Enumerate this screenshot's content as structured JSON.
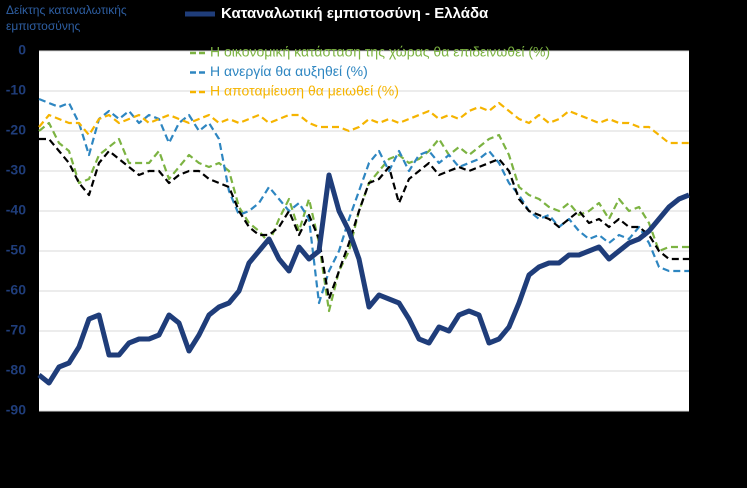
{
  "chart_data": {
    "type": "line",
    "y_label": "Δείκτης καταναλωτικής εμπιστοσύνης",
    "ylim": [
      -90,
      0
    ],
    "yticks": [
      0,
      -10,
      -20,
      -30,
      -40,
      -50,
      -60,
      -70,
      -80,
      -90
    ],
    "grid": true,
    "series": [
      {
        "name": "Η οικονομική κατάσταση της χώρας θα επιδεινωθεί (%)",
        "color": "#7cb342",
        "dashed": true,
        "values": [
          -20,
          -18,
          -23,
          -25,
          -33,
          -32,
          -26,
          -24,
          -22,
          -28,
          -28,
          -28,
          -25,
          -32,
          -29,
          -26,
          -28,
          -29,
          -28,
          -30,
          -39,
          -43,
          -45,
          -48,
          -42,
          -37,
          -45,
          -37,
          -48,
          -65,
          -55,
          -50,
          -40,
          -33,
          -30,
          -27,
          -26,
          -28,
          -27,
          -25,
          -22,
          -26,
          -24,
          -26,
          -24,
          -22,
          -21,
          -26,
          -34,
          -36,
          -37,
          -39,
          -40,
          -38,
          -41,
          -40,
          -38,
          -42,
          -37,
          -40,
          -39,
          -43,
          -50,
          -49,
          -49,
          -49
        ]
      },
      {
        "name": "Η ανεργία θα αυξηθεί (%)",
        "color": "#2e86c1",
        "dashed": true,
        "values": [
          -12,
          -13,
          -14,
          -13,
          -18,
          -26,
          -17,
          -15,
          -17,
          -15,
          -18,
          -16,
          -17,
          -23,
          -18,
          -16,
          -20,
          -18,
          -22,
          -35,
          -41,
          -40,
          -38,
          -34,
          -37,
          -40,
          -38,
          -42,
          -63,
          -55,
          -50,
          -42,
          -35,
          -28,
          -25,
          -30,
          -25,
          -30,
          -26,
          -25,
          -28,
          -26,
          -29,
          -28,
          -27,
          -25,
          -28,
          -33,
          -36,
          -40,
          -42,
          -41,
          -44,
          -42,
          -45,
          -47,
          -46,
          -48,
          -46,
          -47,
          -44,
          -48,
          -54,
          -55,
          -55,
          -55
        ]
      },
      {
        "name": "Η αποταμίευση θα μειωθεί (%)",
        "color": "#f5b400",
        "dashed": true,
        "values": [
          -19,
          -16,
          -17,
          -18,
          -18,
          -21,
          -17,
          -16,
          -18,
          -17,
          -16,
          -18,
          -17,
          -16,
          -17,
          -18,
          -17,
          -16,
          -18,
          -17,
          -18,
          -17,
          -16,
          -18,
          -17,
          -16,
          -16,
          -18,
          -19,
          -19,
          -19,
          -20,
          -19,
          -17,
          -18,
          -17,
          -18,
          -17,
          -16,
          -15,
          -17,
          -16,
          -17,
          -15,
          -14,
          -15,
          -13,
          -15,
          -17,
          -18,
          -16,
          -18,
          -17,
          -15,
          -16,
          -17,
          -18,
          -17,
          -18,
          -18,
          -19,
          -19,
          -21,
          -23,
          -23,
          -23
        ]
      },
      {
        "color": "#000000",
        "dashed": true,
        "values": [
          -22,
          -22,
          -25,
          -28,
          -33,
          -36,
          -28,
          -25,
          -27,
          -29,
          -31,
          -30,
          -30,
          -33,
          -31,
          -30,
          -30,
          -32,
          -33,
          -34,
          -40,
          -44,
          -46,
          -46,
          -44,
          -40,
          -46,
          -41,
          -47,
          -62,
          -55,
          -48,
          -40,
          -33,
          -32,
          -29,
          -38,
          -32,
          -30,
          -28,
          -31,
          -30,
          -29,
          -30,
          -29,
          -28,
          -27,
          -30,
          -37,
          -40,
          -41,
          -42,
          -44,
          -42,
          -40,
          -43,
          -42,
          -44,
          -42,
          -44,
          -44,
          -46,
          -50,
          -52,
          -52,
          -52
        ]
      },
      {
        "name": "Καταναλωτική εμπιστοσύνη - Ελλάδα",
        "color": "#1f3d7a",
        "label_color": "#ffffff",
        "dashed": false,
        "width": 5,
        "values": [
          -81,
          -83,
          -79,
          -78,
          -74,
          -67,
          -66,
          -76,
          -76,
          -73,
          -72,
          -72,
          -71,
          -66,
          -68,
          -75,
          -71,
          -66,
          -64,
          -63,
          -60,
          -53,
          -50,
          -47,
          -52,
          -55,
          -49,
          -52,
          -50,
          -31,
          -40,
          -45,
          -52,
          -64,
          -61,
          -62,
          -63,
          -67,
          -72,
          -73,
          -69,
          -70,
          -66,
          -65,
          -66,
          -73,
          -72,
          -69,
          -63,
          -56,
          -54,
          -53,
          -53,
          -51,
          -51,
          -50,
          -49,
          -52,
          -50,
          -48,
          -47,
          -45,
          -42,
          -39,
          -37,
          -36
        ]
      }
    ]
  }
}
